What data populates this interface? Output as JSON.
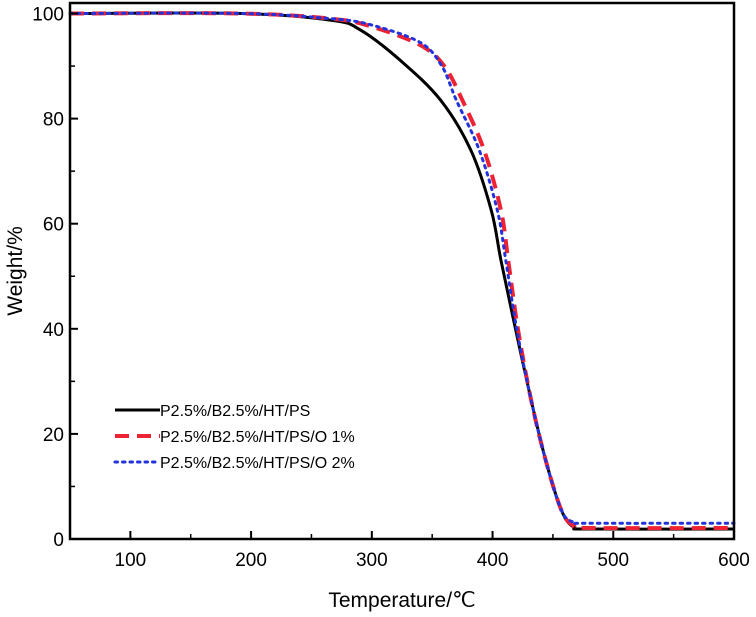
{
  "chart_data": {
    "type": "line",
    "title": "",
    "xlabel": "Temperature/℃",
    "ylabel": "Weight/%",
    "xlim": [
      50,
      600
    ],
    "ylim": [
      0,
      102
    ],
    "xticks": [
      100,
      200,
      300,
      400,
      500,
      600
    ],
    "yticks": [
      0,
      20,
      40,
      60,
      80,
      100
    ],
    "xtick_labels": [
      "100",
      "200",
      "300",
      "400",
      "500",
      "600"
    ],
    "ytick_labels": [
      "0",
      "20",
      "40",
      "60",
      "80",
      "100"
    ],
    "grid": false,
    "legend_position": "bottom-left",
    "series": [
      {
        "name": "P2.5%/B2.5%/HT/PS",
        "color": "#000000",
        "style": "solid",
        "x": [
          50,
          192,
          267,
          291,
          324,
          357,
          382,
          399,
          407,
          419,
          432,
          444,
          457,
          467,
          481,
          600
        ],
        "y": [
          100,
          100,
          98.7,
          96.8,
          91,
          83.5,
          74,
          62.5,
          53,
          40,
          26.4,
          15,
          5.5,
          2.3,
          1.9,
          1.9
        ]
      },
      {
        "name": "P2.5%/B2.5%/HT/PS/O 1%",
        "color": "#ee2233",
        "style": "dashed",
        "x": [
          50,
          192,
          267,
          300,
          340,
          360,
          375,
          393,
          407,
          413,
          421,
          432,
          444,
          457,
          467,
          481,
          600
        ],
        "y": [
          100,
          100,
          99,
          97.5,
          94,
          90,
          83.5,
          74,
          62.5,
          53,
          40,
          26.4,
          15,
          5.5,
          2.6,
          2.1,
          2.1
        ]
      },
      {
        "name": "P2.5%/B2.5%/HT/PS/O 2%",
        "color": "#2233dd",
        "style": "dotted",
        "x": [
          50,
          192,
          267,
          300,
          340,
          358,
          370,
          389,
          404,
          411,
          420,
          432,
          444,
          457,
          467,
          481,
          600
        ],
        "y": [
          100,
          100,
          99,
          97.8,
          94.5,
          90,
          83.5,
          74,
          62.5,
          53,
          40,
          26.4,
          15,
          5.5,
          3.2,
          3.0,
          3.0
        ]
      }
    ]
  }
}
